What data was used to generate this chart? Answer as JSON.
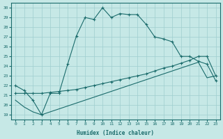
{
  "xlabel": "Humidex (Indice chaleur)",
  "xlim": [
    -0.5,
    23.5
  ],
  "ylim": [
    18.5,
    30.5
  ],
  "yticks": [
    19,
    20,
    21,
    22,
    23,
    24,
    25,
    26,
    27,
    28,
    29,
    30
  ],
  "xticks": [
    0,
    1,
    2,
    3,
    4,
    5,
    6,
    7,
    8,
    9,
    10,
    11,
    12,
    13,
    14,
    15,
    16,
    17,
    18,
    19,
    20,
    21,
    22,
    23
  ],
  "background_color": "#c6e8e6",
  "grid_color": "#9ecece",
  "line_color": "#1a6b6b",
  "line1_x": [
    0,
    1,
    2,
    3,
    4,
    5,
    6,
    7,
    8,
    9,
    10,
    11,
    12,
    13,
    14,
    15,
    16,
    17,
    18,
    19,
    20,
    21,
    22,
    23
  ],
  "line1_y": [
    22.0,
    21.5,
    20.5,
    19.0,
    21.2,
    21.2,
    24.2,
    27.1,
    29.0,
    28.8,
    30.0,
    29.0,
    29.4,
    29.3,
    29.3,
    28.3,
    27.0,
    26.8,
    26.5,
    25.0,
    25.0,
    24.5,
    24.2,
    22.5
  ],
  "line2_x": [
    0,
    1,
    2,
    3,
    4,
    5,
    6,
    7,
    8,
    9,
    10,
    11,
    12,
    13,
    14,
    15,
    16,
    17,
    18,
    19,
    20,
    21,
    22,
    23
  ],
  "line2_y": [
    21.2,
    21.2,
    21.2,
    21.2,
    21.3,
    21.4,
    21.5,
    21.6,
    21.8,
    22.0,
    22.2,
    22.4,
    22.6,
    22.8,
    23.0,
    23.2,
    23.5,
    23.8,
    24.0,
    24.3,
    24.6,
    25.0,
    25.0,
    23.0
  ],
  "line3_x": [
    0,
    1,
    2,
    3,
    4,
    5,
    6,
    7,
    8,
    9,
    10,
    11,
    12,
    13,
    14,
    15,
    16,
    17,
    18,
    19,
    20,
    21,
    22,
    23
  ],
  "line3_y": [
    20.5,
    19.8,
    19.3,
    19.0,
    19.3,
    19.6,
    19.9,
    20.2,
    20.5,
    20.8,
    21.1,
    21.4,
    21.7,
    22.0,
    22.3,
    22.6,
    22.9,
    23.2,
    23.5,
    23.8,
    24.1,
    24.4,
    22.8,
    23.0
  ]
}
